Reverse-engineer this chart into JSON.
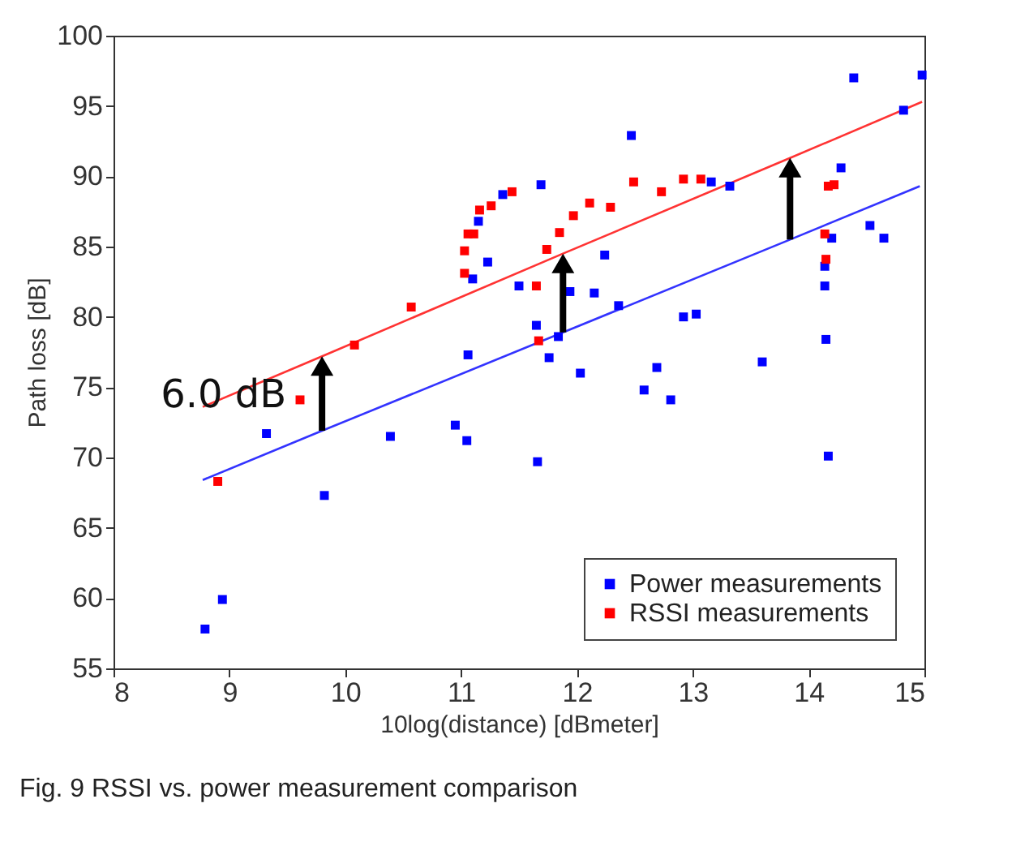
{
  "chart_data": {
    "type": "scatter",
    "xlabel": "10log(distance) [dBmeter]",
    "ylabel": "Path loss [dB]",
    "xlim": [
      8,
      15
    ],
    "ylim": [
      55,
      100
    ],
    "xticks": [
      8,
      9,
      10,
      11,
      12,
      13,
      14,
      15
    ],
    "yticks": [
      55,
      60,
      65,
      70,
      75,
      80,
      85,
      90,
      95,
      100
    ],
    "grid": false,
    "legend": "bottom right",
    "marker": "square",
    "annotations": [
      {
        "text": "6.0 dB",
        "x": 8.95,
        "y": 74.4
      },
      "Fig. 9 RSSI vs. power measurement comparison"
    ],
    "series": [
      {
        "name": "Power measurements",
        "color": "#0000ff",
        "x": [
          8.79,
          8.94,
          9.32,
          9.82,
          10.39,
          10.95,
          11.05,
          11.06,
          11.1,
          11.15,
          11.23,
          11.36,
          11.5,
          11.65,
          11.66,
          11.69,
          11.76,
          11.84,
          11.94,
          12.03,
          12.15,
          12.24,
          12.36,
          12.47,
          12.58,
          12.69,
          12.81,
          12.92,
          13.03,
          13.16,
          13.32,
          13.6,
          14.14,
          14.14,
          14.15,
          14.17,
          14.2,
          14.28,
          14.39,
          14.53,
          14.65,
          14.82,
          14.98
        ],
        "values": [
          57.8,
          59.9,
          71.7,
          67.3,
          71.5,
          72.3,
          71.2,
          77.3,
          82.7,
          86.8,
          83.9,
          88.7,
          82.2,
          79.4,
          69.7,
          89.4,
          77.1,
          78.6,
          81.8,
          76.0,
          81.7,
          84.4,
          80.8,
          92.9,
          74.8,
          76.4,
          74.1,
          80.0,
          80.2,
          89.6,
          89.3,
          76.8,
          83.6,
          82.2,
          78.4,
          70.1,
          85.6,
          90.6,
          97.0,
          86.5,
          85.6,
          94.7,
          97.2
        ]
      },
      {
        "name": "RSSI measurements",
        "color": "#ff0000",
        "x": [
          8.9,
          9.61,
          10.08,
          10.57,
          11.03,
          11.03,
          11.06,
          11.11,
          11.16,
          11.26,
          11.44,
          11.65,
          11.67,
          11.74,
          11.85,
          11.97,
          12.11,
          12.29,
          12.49,
          12.73,
          12.92,
          13.07,
          14.14,
          14.15,
          14.17,
          14.22
        ],
        "values": [
          68.3,
          74.1,
          78.0,
          80.7,
          83.1,
          84.7,
          85.9,
          85.9,
          87.6,
          87.9,
          88.9,
          82.2,
          78.3,
          84.8,
          86.0,
          87.2,
          88.1,
          87.8,
          89.6,
          88.9,
          89.8,
          89.8,
          85.9,
          84.1,
          89.3,
          89.4
        ]
      },
      {
        "color": "#3333ff",
        "type": "line",
        "marker": "none",
        "x": [
          8.77,
          9.8,
          11.88,
          13.84,
          14.96
        ],
        "values": [
          68.4,
          71.9,
          78.9,
          85.5,
          89.3
        ]
      },
      {
        "color": "#ff3333",
        "type": "line",
        "marker": "none",
        "x": [
          8.77,
          9.8,
          11.88,
          13.84,
          14.98
        ],
        "values": [
          73.6,
          77.2,
          84.5,
          91.3,
          95.3
        ]
      }
    ]
  }
}
